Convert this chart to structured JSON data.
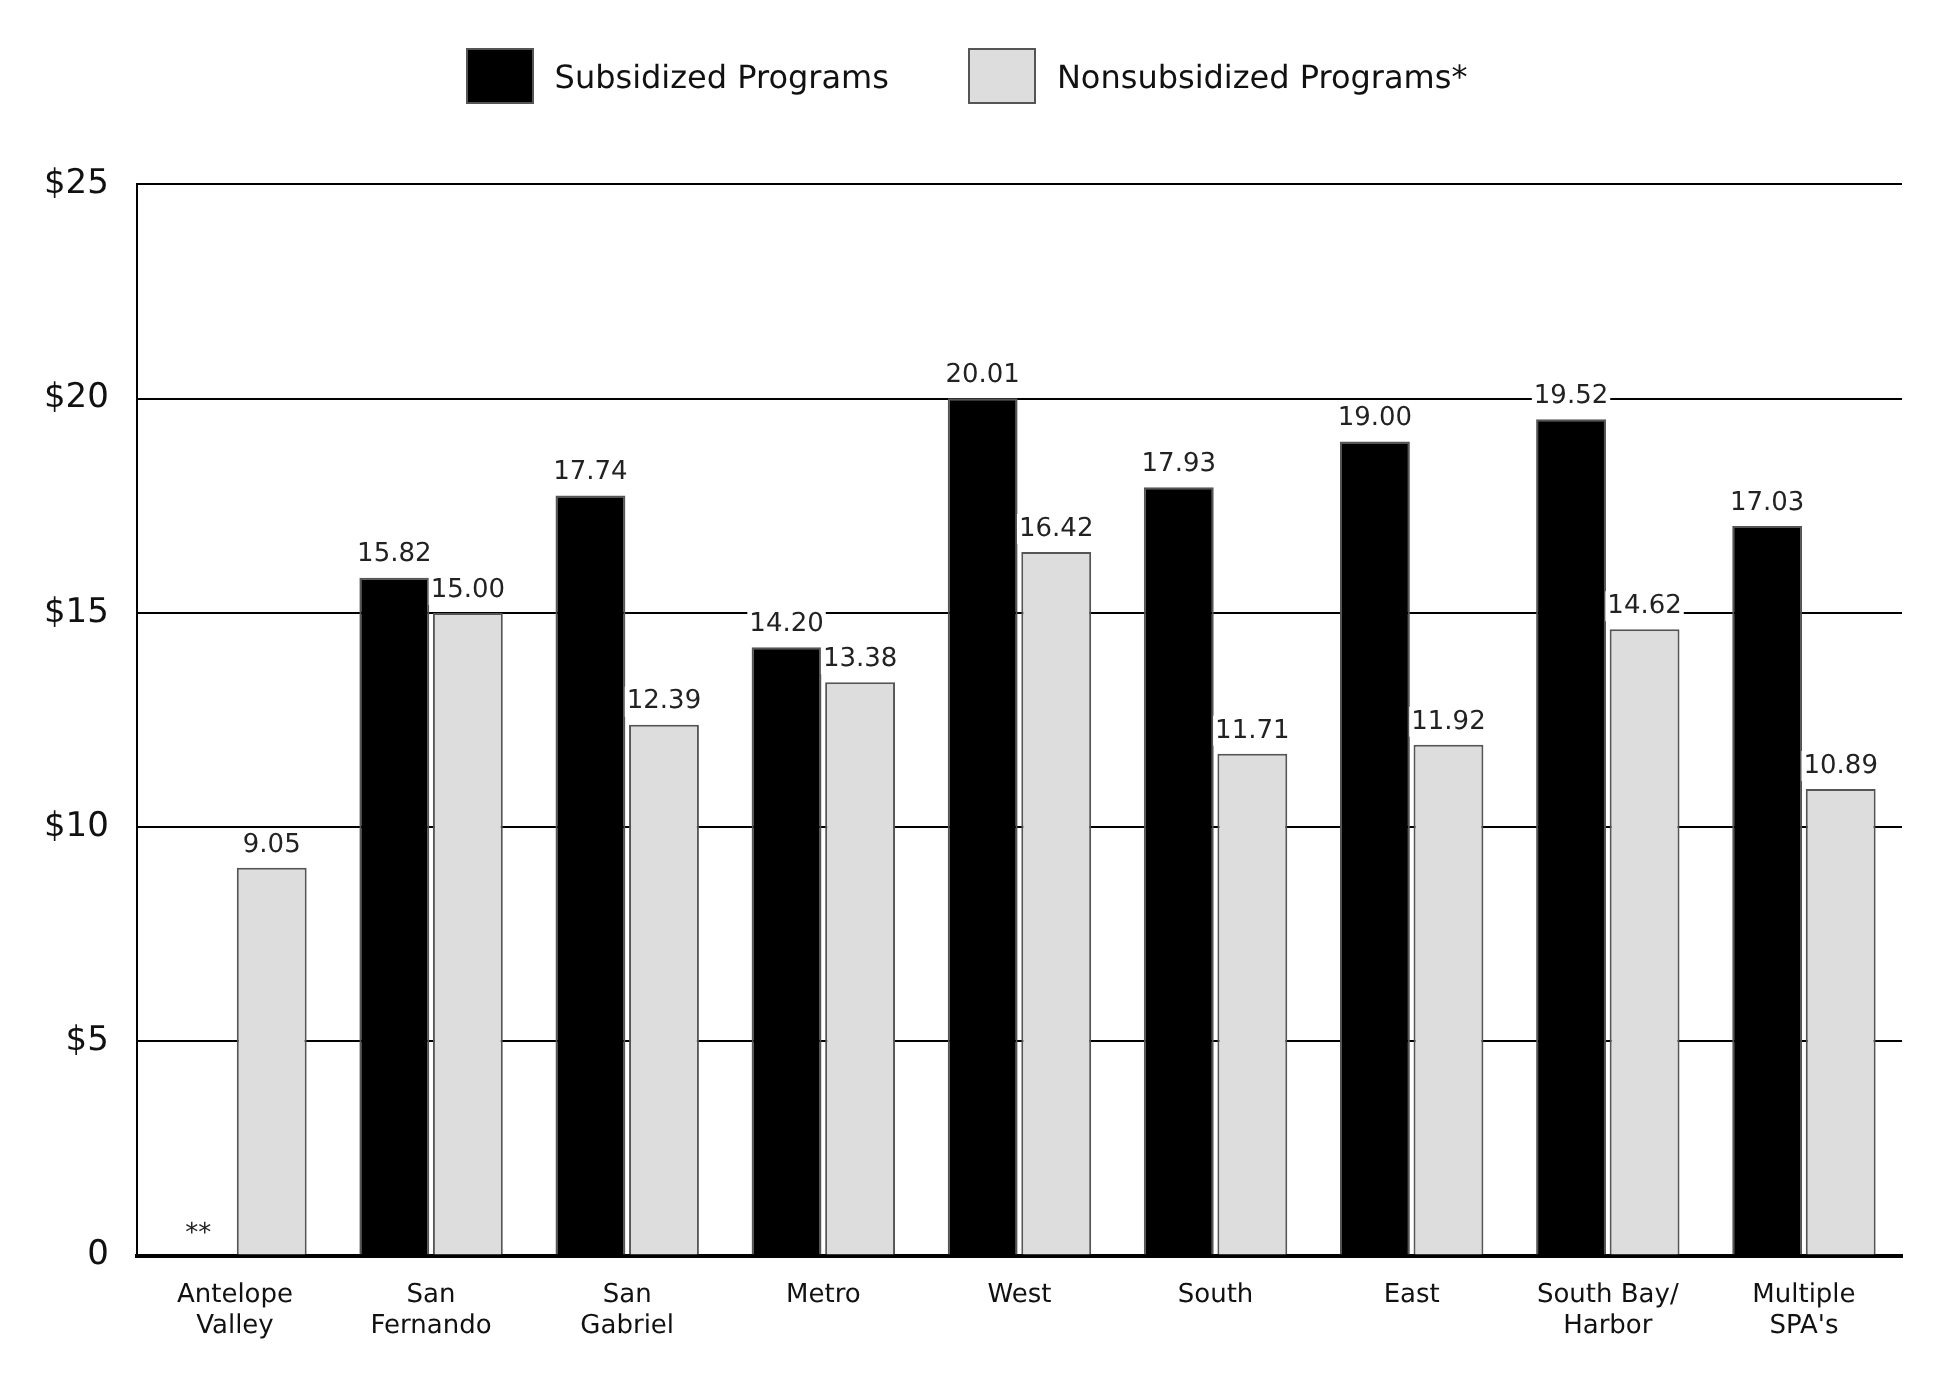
{
  "chart_data": {
    "type": "bar",
    "categories": [
      "Antelope\nValley",
      "San\nFernando",
      "San\nGabriel",
      "Metro",
      "West",
      "South",
      "East",
      "South Bay/\nHarbor",
      "Multiple\nSPA's"
    ],
    "series": [
      {
        "name": "Subsidized Programs",
        "color": "#000000",
        "values": [
          null,
          15.82,
          17.74,
          14.2,
          20.01,
          17.93,
          19.0,
          19.52,
          17.03
        ],
        "value_labels": [
          null,
          "15.82",
          "17.74",
          "14.20",
          "20.01",
          "17.93",
          "19.00",
          "19.52",
          "17.03"
        ]
      },
      {
        "name": "Nonsubsidized Programs*",
        "color": "#dddddd",
        "values": [
          9.05,
          15.0,
          12.39,
          13.38,
          16.42,
          11.71,
          11.92,
          14.62,
          10.89
        ],
        "value_labels": [
          "9.05",
          "15.00",
          "12.39",
          "13.38",
          "16.42",
          "11.71",
          "11.92",
          "14.62",
          "10.89"
        ]
      }
    ],
    "ylim": [
      0,
      25
    ],
    "yticks": [
      {
        "value": 0,
        "label": "0"
      },
      {
        "value": 5,
        "label": "$5"
      },
      {
        "value": 10,
        "label": "$10"
      },
      {
        "value": 15,
        "label": "$15"
      },
      {
        "value": 20,
        "label": "$20"
      },
      {
        "value": 25,
        "label": "$25"
      }
    ],
    "grid": "y",
    "legend": "top",
    "annotations": [
      {
        "text": "**",
        "x": "Antelope\nValley",
        "y": 0.5
      }
    ]
  }
}
